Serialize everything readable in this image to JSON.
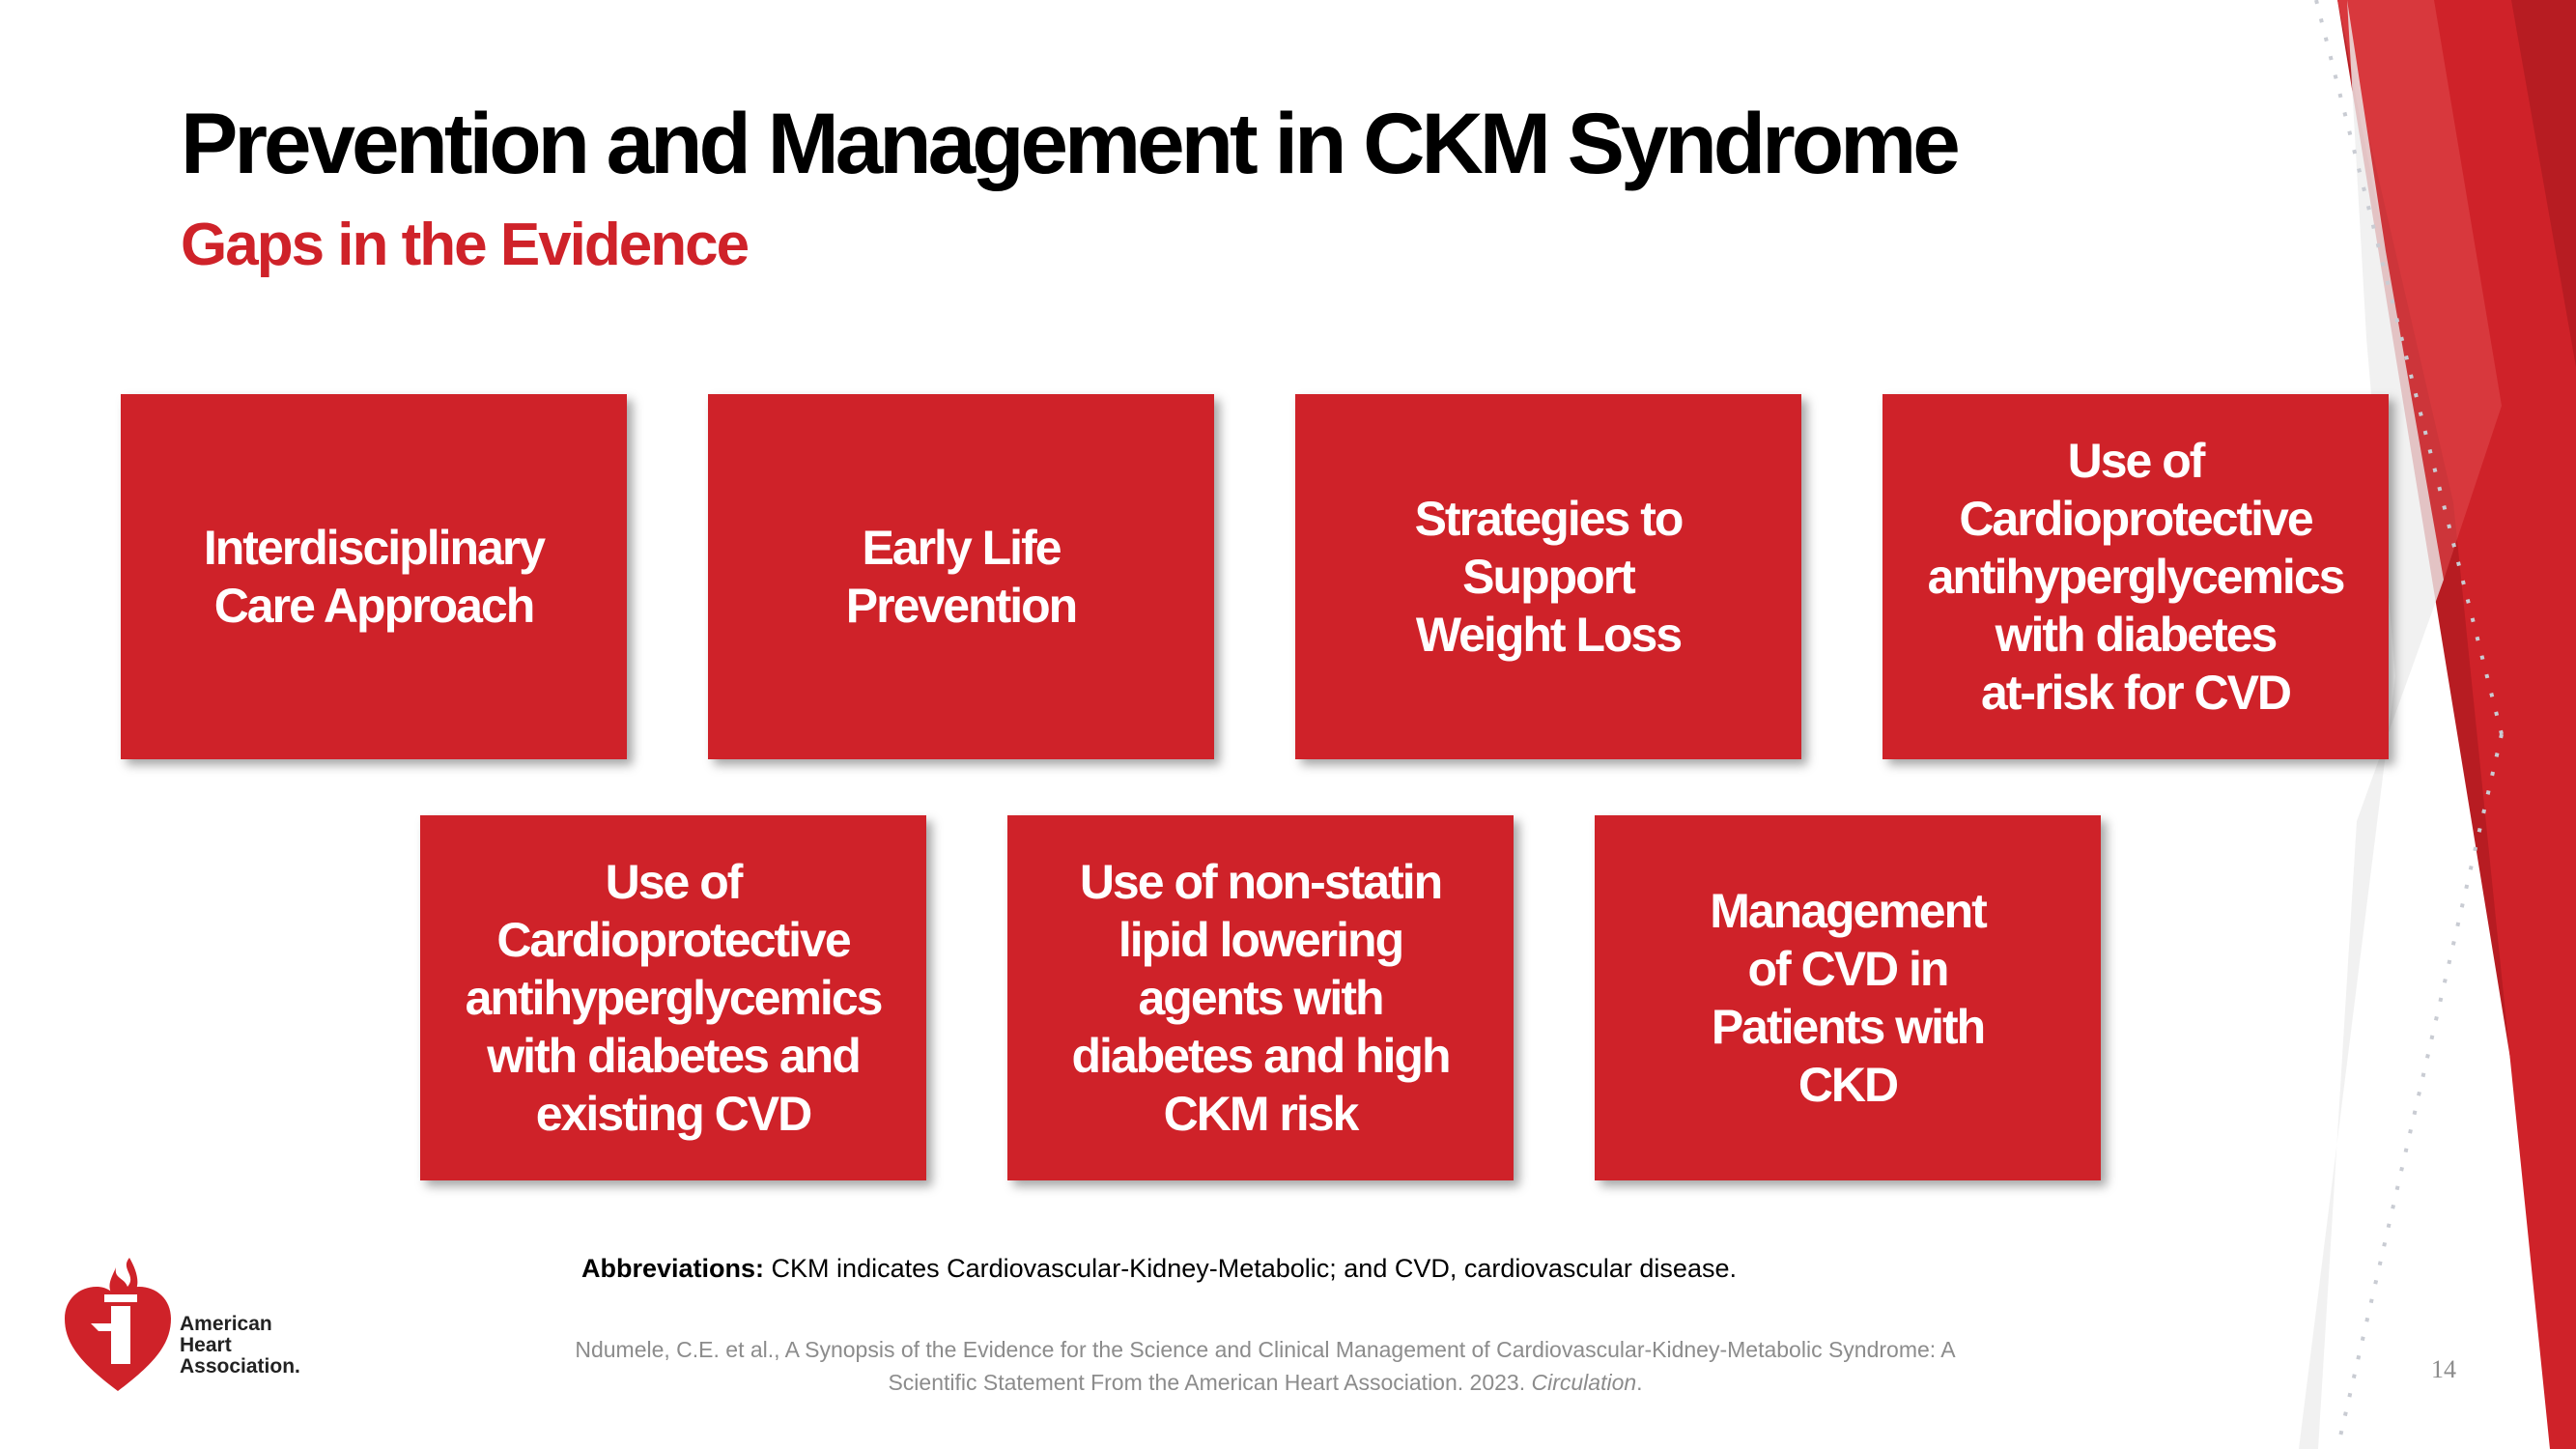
{
  "colors": {
    "accent": "#cf2229",
    "card_bg": "#cf2229",
    "text_dark": "#000000",
    "text_muted": "#8c8c8c",
    "band_dark": "#b71c22"
  },
  "slide": {
    "title": "Prevention and Management in CKM Syndrome",
    "subtitle": "Gaps in the Evidence"
  },
  "cards": [
    {
      "label": "Interdisciplinary\nCare Approach"
    },
    {
      "label": "Early Life\nPrevention"
    },
    {
      "label": "Strategies to\nSupport\nWeight Loss"
    },
    {
      "label": "Use of\nCardioprotective\nantihyperglycemics\nwith diabetes\nat-risk for CVD"
    },
    {
      "label": "Use of\nCardioprotective\nantihyperglycemics\nwith diabetes and\nexisting CVD"
    },
    {
      "label": "Use of non-statin\nlipid lowering\nagents with\ndiabetes and high\nCKM risk"
    },
    {
      "label": "Management\nof CVD in\nPatients with\nCKD"
    }
  ],
  "abbreviations": {
    "label": "Abbreviations:",
    "text": " CKM indicates Cardiovascular-Kidney-Metabolic; and CVD, cardiovascular disease."
  },
  "citation": {
    "text": "Ndumele, C.E. et al., A Synopsis of the Evidence for the Science and Clinical Management of Cardiovascular-Kidney-Metabolic Syndrome: A Scientific Statement From the American Heart Association. 2023. ",
    "journal": "Circulation",
    "end": "."
  },
  "page_number": "14",
  "logo": {
    "icon": "heart-torch-icon",
    "line1": "American",
    "line2": "Heart",
    "line3": "Association."
  }
}
